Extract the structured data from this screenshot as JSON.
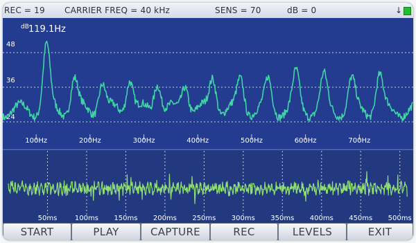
{
  "status": {
    "rec": "REC = 19",
    "carrier": "CARRIER FREQ = 40 kHz",
    "sens": "SENS = 70",
    "db": "dB = 0",
    "arrow": "↓"
  },
  "spectrum": {
    "y_unit": "dB",
    "peak_label": "119.1Hz",
    "y_ticks": [
      "48",
      "36",
      "24"
    ],
    "x_ticks": [
      "100Hz",
      "200Hz",
      "300Hz",
      "400Hz",
      "500Hz",
      "600Hz",
      "700Hz"
    ],
    "x_tick_values": [
      100,
      200,
      300,
      400,
      500,
      600,
      700
    ],
    "x_range": [
      38,
      800
    ],
    "y_range": [
      20,
      52
    ],
    "peak_freq": 119.1,
    "line_color": "#3fd6a4"
  },
  "waveform": {
    "x_ticks": [
      "50ms",
      "100ms",
      "150ms",
      "200ms",
      "250ms",
      "300ms",
      "350ms",
      "400ms",
      "450ms",
      "500ms"
    ],
    "x_tick_values": [
      50,
      100,
      150,
      200,
      250,
      300,
      350,
      400,
      450,
      500
    ],
    "x_range": [
      0,
      510
    ],
    "line_color": "#8fe070"
  },
  "colors": {
    "screen_bg": "#243c8f",
    "grid": "#c9cfdc"
  },
  "buttons": [
    {
      "label": "START"
    },
    {
      "label": "PLAY"
    },
    {
      "label": "CAPTURE"
    },
    {
      "label": "REC"
    },
    {
      "label": "LEVELS"
    },
    {
      "label": "EXIT"
    }
  ]
}
